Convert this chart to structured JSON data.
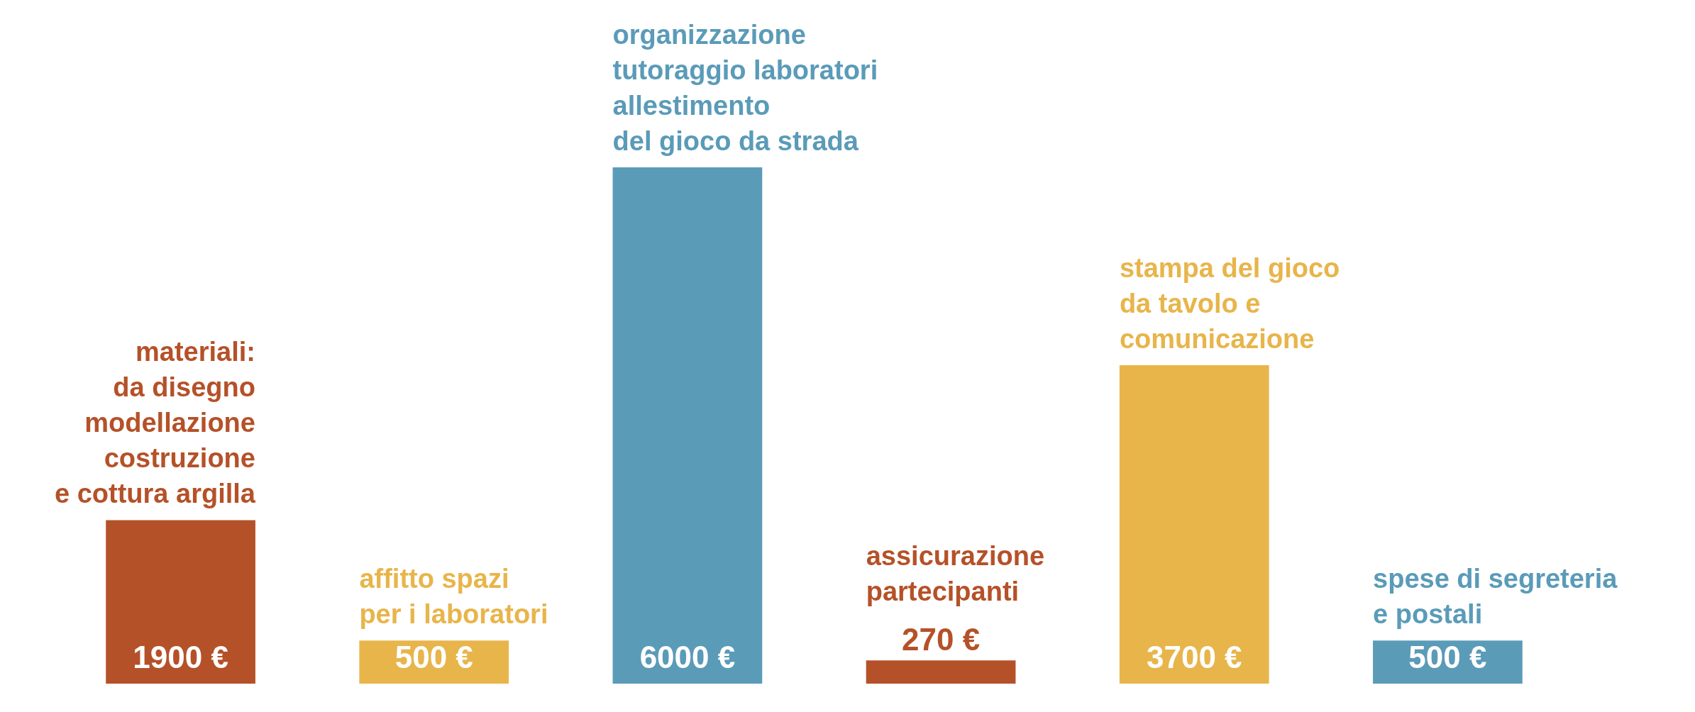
{
  "chart_data": {
    "type": "bar",
    "categories": [
      "materiali:\nda disegno\nmodellazione\ncostruzione\ne cottura argilla",
      "affitto spazi\nper i laboratori",
      "organizzazione\ntutoraggio laboratori\nallestimento\ndel gioco da strada",
      "assicurazione\npartecipanti",
      "stampa del gioco\nda tavolo e\ncomunicazione",
      "spese di segreteria\ne postali"
    ],
    "values": [
      1900,
      500,
      6000,
      270,
      3700,
      500
    ],
    "value_labels": [
      "1900 €",
      "500 €",
      "6000 €",
      "270 €",
      "3700 €",
      "500 €"
    ],
    "colors": [
      "#b55128",
      "#e8b54b",
      "#5a9bb8",
      "#b55128",
      "#e8b54b",
      "#5a9bb8"
    ],
    "tick_labels": false
  }
}
